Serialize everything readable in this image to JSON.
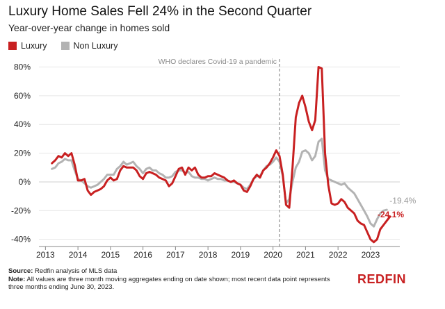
{
  "chart_data": {
    "type": "line",
    "title": "Luxury Home Sales Fell 24% in the Second Quarter",
    "subtitle": "Year-over-year change in homes sold",
    "xlabel": "",
    "ylabel": "",
    "xlim": [
      2012.8,
      2023.9
    ],
    "ylim": [
      -45,
      88
    ],
    "y_ticks": [
      80,
      60,
      40,
      20,
      0,
      -20,
      -40
    ],
    "y_tick_labels": [
      "80%",
      "60%",
      "40%",
      "20%",
      "0%",
      "-20%",
      "-40%"
    ],
    "x_ticks": [
      2013,
      2014,
      2015,
      2016,
      2017,
      2018,
      2019,
      2020,
      2021,
      2022,
      2023
    ],
    "x_tick_labels": [
      "2013",
      "2014",
      "2015",
      "2016",
      "2017",
      "2018",
      "2019",
      "2020",
      "2021",
      "2022",
      "2023"
    ],
    "grid": true,
    "legend": "top-left",
    "annotation": {
      "text": "WHO declares Covid-19 a pandemic",
      "x": 2020.2
    },
    "end_labels": {
      "luxury": "-24.1%",
      "non_luxury": "-19.4%"
    },
    "colors": {
      "luxury": "#c82021",
      "non_luxury": "#b3b3b3"
    },
    "series": [
      {
        "name": "Luxury",
        "points": [
          [
            2013.2,
            13
          ],
          [
            2013.3,
            15
          ],
          [
            2013.4,
            18
          ],
          [
            2013.5,
            17
          ],
          [
            2013.6,
            20
          ],
          [
            2013.7,
            18
          ],
          [
            2013.8,
            20
          ],
          [
            2013.9,
            12
          ],
          [
            2014.0,
            1
          ],
          [
            2014.1,
            1
          ],
          [
            2014.2,
            2
          ],
          [
            2014.3,
            -6
          ],
          [
            2014.4,
            -9
          ],
          [
            2014.5,
            -7
          ],
          [
            2014.6,
            -6
          ],
          [
            2014.7,
            -5
          ],
          [
            2014.8,
            -3
          ],
          [
            2014.9,
            1
          ],
          [
            2015.0,
            3
          ],
          [
            2015.1,
            1
          ],
          [
            2015.2,
            2
          ],
          [
            2015.3,
            8
          ],
          [
            2015.4,
            11
          ],
          [
            2015.5,
            10
          ],
          [
            2015.6,
            10
          ],
          [
            2015.7,
            10
          ],
          [
            2015.8,
            8
          ],
          [
            2015.9,
            4
          ],
          [
            2016.0,
            2
          ],
          [
            2016.1,
            6
          ],
          [
            2016.2,
            7
          ],
          [
            2016.3,
            6
          ],
          [
            2016.4,
            5
          ],
          [
            2016.5,
            3
          ],
          [
            2016.6,
            2
          ],
          [
            2016.7,
            1
          ],
          [
            2016.8,
            -3
          ],
          [
            2016.9,
            -1
          ],
          [
            2017.0,
            4
          ],
          [
            2017.1,
            9
          ],
          [
            2017.2,
            10
          ],
          [
            2017.3,
            5
          ],
          [
            2017.4,
            10
          ],
          [
            2017.5,
            8
          ],
          [
            2017.6,
            10
          ],
          [
            2017.7,
            5
          ],
          [
            2017.8,
            3
          ],
          [
            2017.9,
            3
          ],
          [
            2018.0,
            4
          ],
          [
            2018.1,
            4
          ],
          [
            2018.2,
            6
          ],
          [
            2018.3,
            5
          ],
          [
            2018.4,
            4
          ],
          [
            2018.5,
            3
          ],
          [
            2018.6,
            1
          ],
          [
            2018.7,
            0
          ],
          [
            2018.8,
            1
          ],
          [
            2018.9,
            -1
          ],
          [
            2019.0,
            -2
          ],
          [
            2019.1,
            -6
          ],
          [
            2019.2,
            -7
          ],
          [
            2019.3,
            -3
          ],
          [
            2019.4,
            2
          ],
          [
            2019.5,
            5
          ],
          [
            2019.6,
            3
          ],
          [
            2019.7,
            8
          ],
          [
            2019.8,
            10
          ],
          [
            2019.9,
            13
          ],
          [
            2020.0,
            17
          ],
          [
            2020.1,
            22
          ],
          [
            2020.2,
            18
          ],
          [
            2020.3,
            5
          ],
          [
            2020.4,
            -16
          ],
          [
            2020.5,
            -18
          ],
          [
            2020.6,
            10
          ],
          [
            2020.7,
            45
          ],
          [
            2020.8,
            55
          ],
          [
            2020.9,
            60
          ],
          [
            2021.0,
            52
          ],
          [
            2021.1,
            42
          ],
          [
            2021.2,
            36
          ],
          [
            2021.3,
            43
          ],
          [
            2021.4,
            80
          ],
          [
            2021.5,
            79
          ],
          [
            2021.6,
            20
          ],
          [
            2021.7,
            -2
          ],
          [
            2021.8,
            -15
          ],
          [
            2021.9,
            -16
          ],
          [
            2022.0,
            -15
          ],
          [
            2022.1,
            -12
          ],
          [
            2022.2,
            -14
          ],
          [
            2022.3,
            -18
          ],
          [
            2022.4,
            -20
          ],
          [
            2022.5,
            -22
          ],
          [
            2022.6,
            -27
          ],
          [
            2022.7,
            -29
          ],
          [
            2022.8,
            -30
          ],
          [
            2022.9,
            -35
          ],
          [
            2023.0,
            -40
          ],
          [
            2023.1,
            -42
          ],
          [
            2023.2,
            -40
          ],
          [
            2023.3,
            -33
          ],
          [
            2023.4,
            -30
          ],
          [
            2023.5,
            -27
          ],
          [
            2023.6,
            -24.1
          ]
        ]
      },
      {
        "name": "Non Luxury",
        "points": [
          [
            2013.2,
            9
          ],
          [
            2013.3,
            10
          ],
          [
            2013.4,
            13
          ],
          [
            2013.5,
            14
          ],
          [
            2013.6,
            16
          ],
          [
            2013.7,
            15
          ],
          [
            2013.8,
            15
          ],
          [
            2013.9,
            8
          ],
          [
            2014.0,
            2
          ],
          [
            2014.1,
            1
          ],
          [
            2014.2,
            -1
          ],
          [
            2014.3,
            -3
          ],
          [
            2014.4,
            -4
          ],
          [
            2014.5,
            -3
          ],
          [
            2014.6,
            -2
          ],
          [
            2014.7,
            0
          ],
          [
            2014.8,
            2
          ],
          [
            2014.9,
            5
          ],
          [
            2015.0,
            5
          ],
          [
            2015.1,
            5
          ],
          [
            2015.2,
            9
          ],
          [
            2015.3,
            11
          ],
          [
            2015.4,
            14
          ],
          [
            2015.5,
            12
          ],
          [
            2015.6,
            13
          ],
          [
            2015.7,
            14
          ],
          [
            2015.8,
            11
          ],
          [
            2015.9,
            9
          ],
          [
            2016.0,
            6
          ],
          [
            2016.1,
            9
          ],
          [
            2016.2,
            10
          ],
          [
            2016.3,
            8
          ],
          [
            2016.4,
            8
          ],
          [
            2016.5,
            6
          ],
          [
            2016.6,
            5
          ],
          [
            2016.7,
            3
          ],
          [
            2016.8,
            3
          ],
          [
            2016.9,
            4
          ],
          [
            2017.0,
            7
          ],
          [
            2017.1,
            8
          ],
          [
            2017.2,
            8
          ],
          [
            2017.3,
            6
          ],
          [
            2017.4,
            7
          ],
          [
            2017.5,
            4
          ],
          [
            2017.6,
            3
          ],
          [
            2017.7,
            3
          ],
          [
            2017.8,
            2
          ],
          [
            2017.9,
            2
          ],
          [
            2018.0,
            1
          ],
          [
            2018.1,
            2
          ],
          [
            2018.2,
            3
          ],
          [
            2018.3,
            2
          ],
          [
            2018.4,
            2
          ],
          [
            2018.5,
            1
          ],
          [
            2018.6,
            1
          ],
          [
            2018.7,
            0
          ],
          [
            2018.8,
            0
          ],
          [
            2018.9,
            -1
          ],
          [
            2019.0,
            -2
          ],
          [
            2019.1,
            -4
          ],
          [
            2019.2,
            -5
          ],
          [
            2019.3,
            -2
          ],
          [
            2019.4,
            2
          ],
          [
            2019.5,
            4
          ],
          [
            2019.6,
            4
          ],
          [
            2019.7,
            8
          ],
          [
            2019.8,
            11
          ],
          [
            2019.9,
            12
          ],
          [
            2020.0,
            14
          ],
          [
            2020.1,
            17
          ],
          [
            2020.2,
            14
          ],
          [
            2020.3,
            4
          ],
          [
            2020.4,
            -15
          ],
          [
            2020.5,
            -12
          ],
          [
            2020.6,
            0
          ],
          [
            2020.7,
            10
          ],
          [
            2020.8,
            14
          ],
          [
            2020.9,
            21
          ],
          [
            2021.0,
            22
          ],
          [
            2021.1,
            20
          ],
          [
            2021.2,
            15
          ],
          [
            2021.3,
            18
          ],
          [
            2021.4,
            28
          ],
          [
            2021.5,
            30
          ],
          [
            2021.6,
            8
          ],
          [
            2021.7,
            2
          ],
          [
            2021.8,
            1
          ],
          [
            2021.9,
            0
          ],
          [
            2022.0,
            -1
          ],
          [
            2022.1,
            -2
          ],
          [
            2022.2,
            -1
          ],
          [
            2022.3,
            -4
          ],
          [
            2022.4,
            -6
          ],
          [
            2022.5,
            -8
          ],
          [
            2022.6,
            -12
          ],
          [
            2022.7,
            -16
          ],
          [
            2022.8,
            -20
          ],
          [
            2022.9,
            -24
          ],
          [
            2023.0,
            -29
          ],
          [
            2023.1,
            -31
          ],
          [
            2023.2,
            -26
          ],
          [
            2023.3,
            -22
          ],
          [
            2023.4,
            -20
          ],
          [
            2023.5,
            -19.4
          ]
        ]
      }
    ]
  },
  "footer": {
    "source_label": "Source:",
    "source_text": "Redfin analysis of MLS data",
    "note_label": "Note:",
    "note_text": "All values are three month moving aggregates ending on date shown; most recent data point represents three months ending June 30, 2023."
  },
  "logo": "REDFIN"
}
